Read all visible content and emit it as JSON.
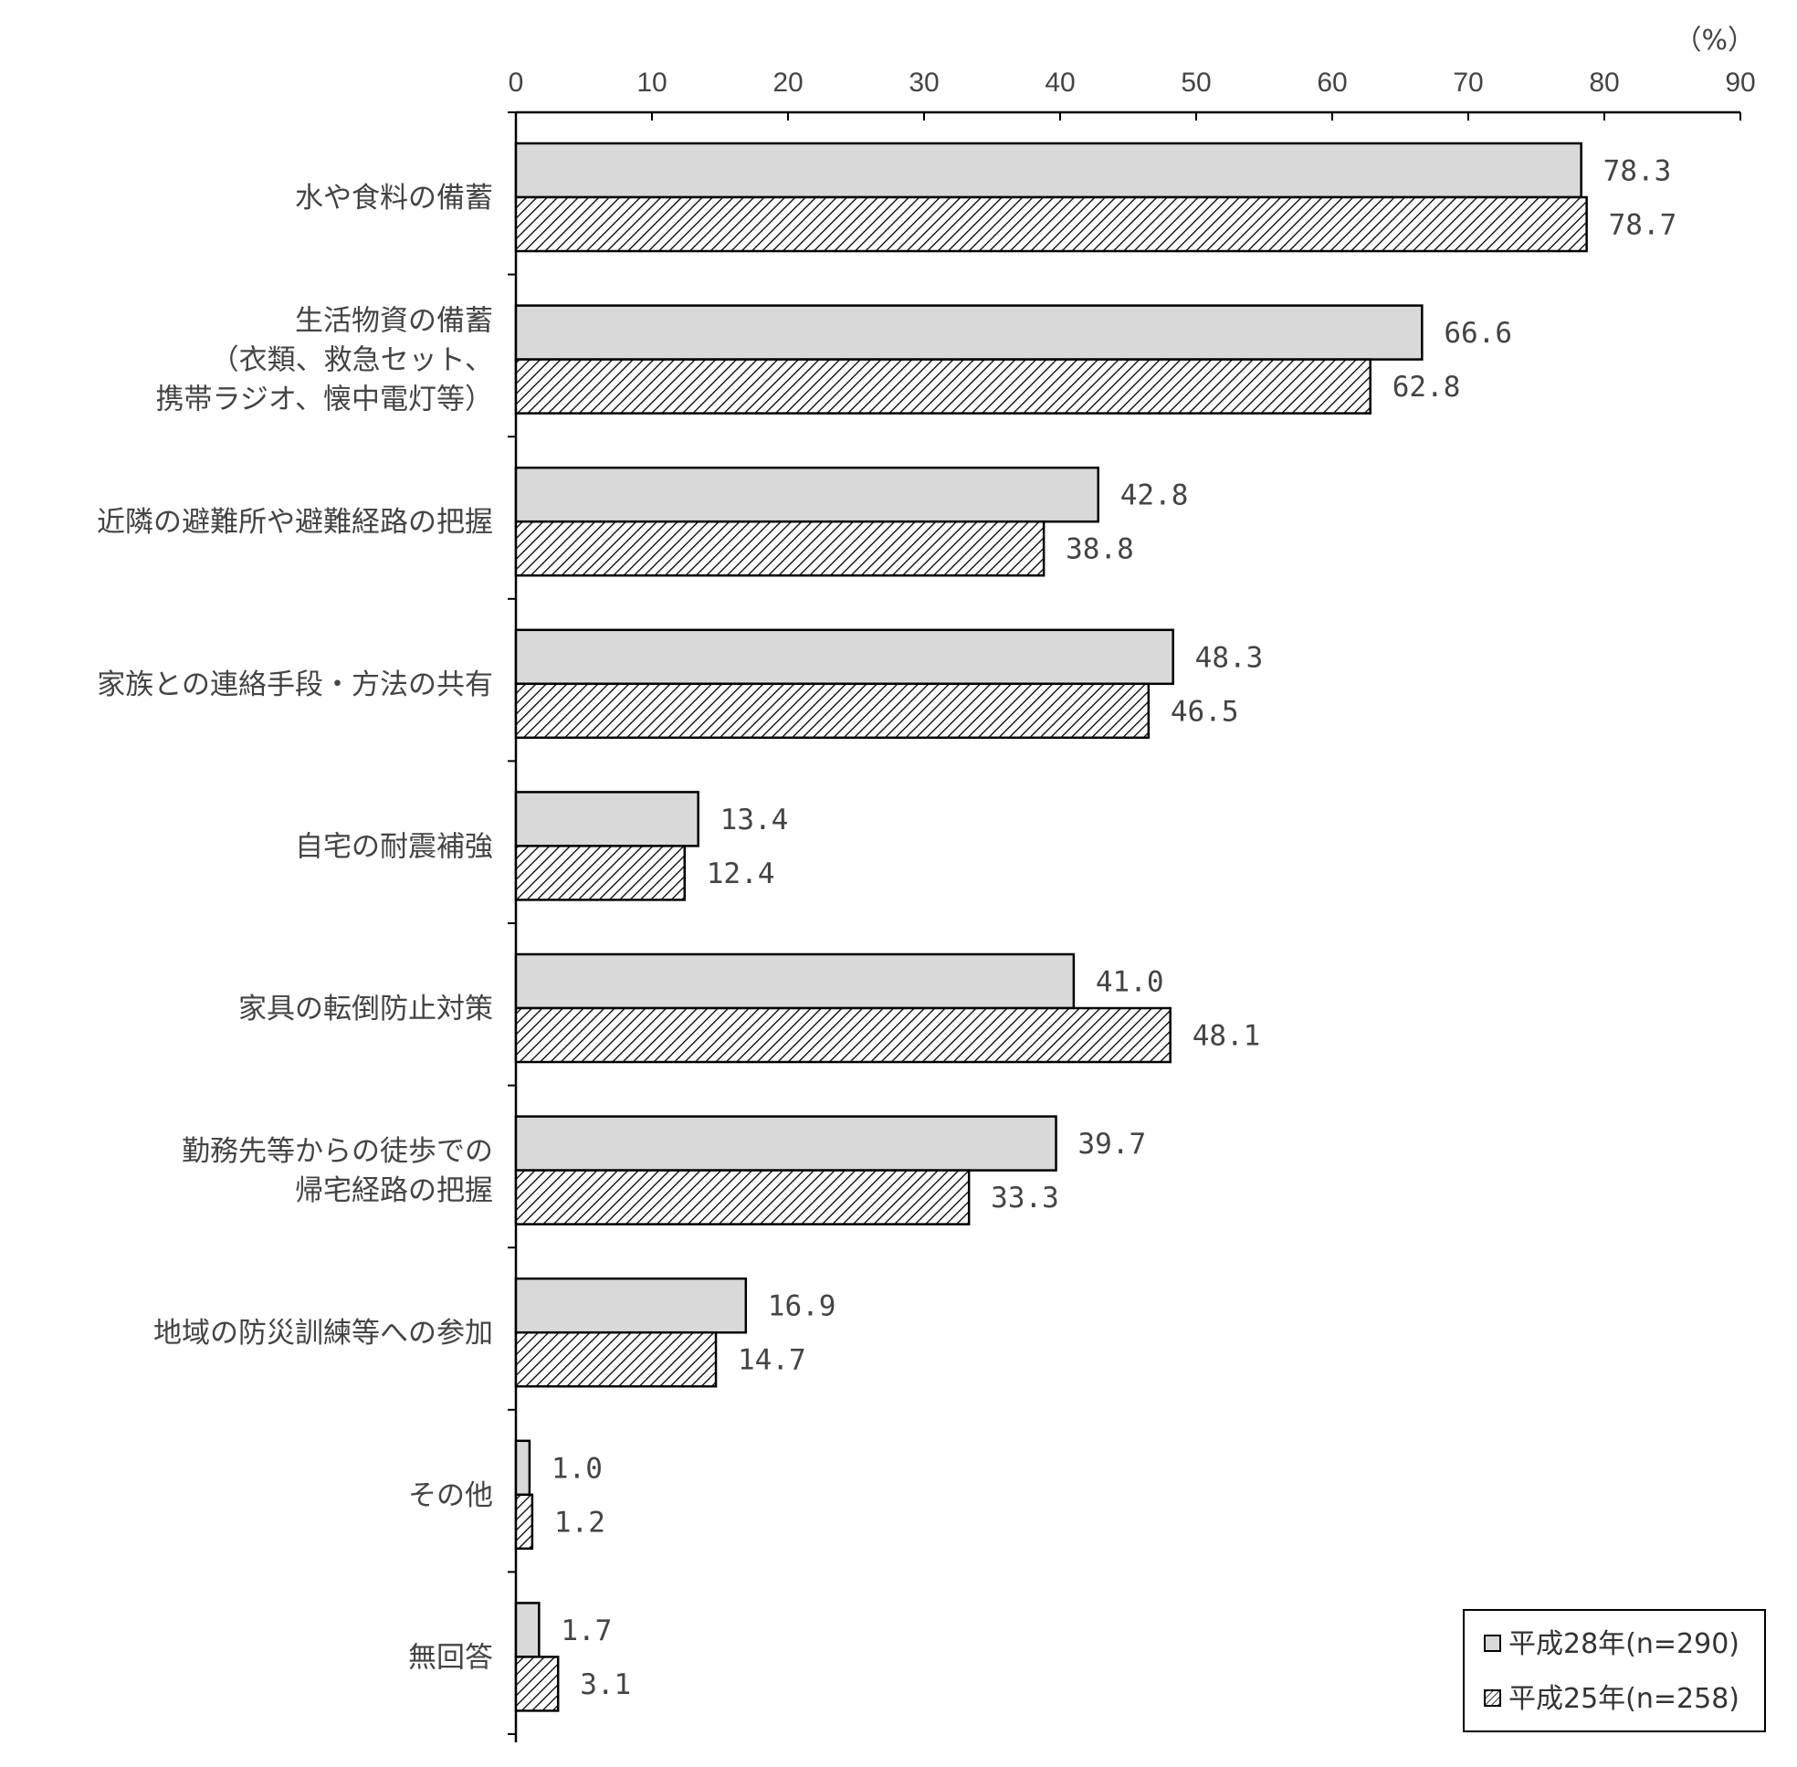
{
  "chart_data": {
    "type": "bar",
    "orientation": "horizontal",
    "title": "",
    "xlabel": "",
    "ylabel": "",
    "unit_label": "（%）",
    "xlim": [
      0,
      90
    ],
    "ticks": [
      0,
      10,
      20,
      30,
      40,
      50,
      60,
      70,
      80,
      90
    ],
    "tick_labels": [
      "0",
      "10",
      "20",
      "30",
      "40",
      "50",
      "60",
      "70",
      "80",
      "90"
    ],
    "grid": false,
    "legend_position": "bottom-right",
    "categories": [
      [
        "水や食料の備蓄"
      ],
      [
        "生活物資の備蓄",
        "（衣類、救急セット、",
        "携帯ラジオ、懐中電灯等）"
      ],
      [
        "近隣の避難所や避難経路の把握"
      ],
      [
        "家族との連絡手段・方法の共有"
      ],
      [
        "自宅の耐震補強"
      ],
      [
        "家具の転倒防止対策"
      ],
      [
        "勤務先等からの徒歩での",
        "帰宅経路の把握"
      ],
      [
        "地域の防災訓練等への参加"
      ],
      [
        "その他"
      ],
      [
        "無回答"
      ]
    ],
    "series": [
      {
        "name": "平成28年(n=290)",
        "fill": "#d9d9d9",
        "pattern": "solid",
        "values": [
          78.3,
          66.6,
          42.8,
          48.3,
          13.4,
          41.0,
          39.7,
          16.9,
          1.0,
          1.7
        ],
        "labels": [
          "78.3",
          "66.6",
          "42.8",
          "48.3",
          "13.4",
          "41.0",
          "39.7",
          "16.9",
          "1.0",
          "1.7"
        ]
      },
      {
        "name": "平成25年(n=258)",
        "fill": "#ffffff",
        "pattern": "diagonal-hatch",
        "values": [
          78.7,
          62.8,
          38.8,
          46.5,
          12.4,
          48.1,
          33.3,
          14.7,
          1.2,
          3.1
        ],
        "labels": [
          "78.7",
          "62.8",
          "38.8",
          "46.5",
          "12.4",
          "48.1",
          "33.3",
          "14.7",
          "1.2",
          "3.1"
        ]
      }
    ]
  },
  "colors": {
    "axis": "#000000",
    "text": "#444444",
    "bar_outline": "#000000",
    "series1_fill": "#d9d9d9",
    "hatch_line": "#000000"
  }
}
